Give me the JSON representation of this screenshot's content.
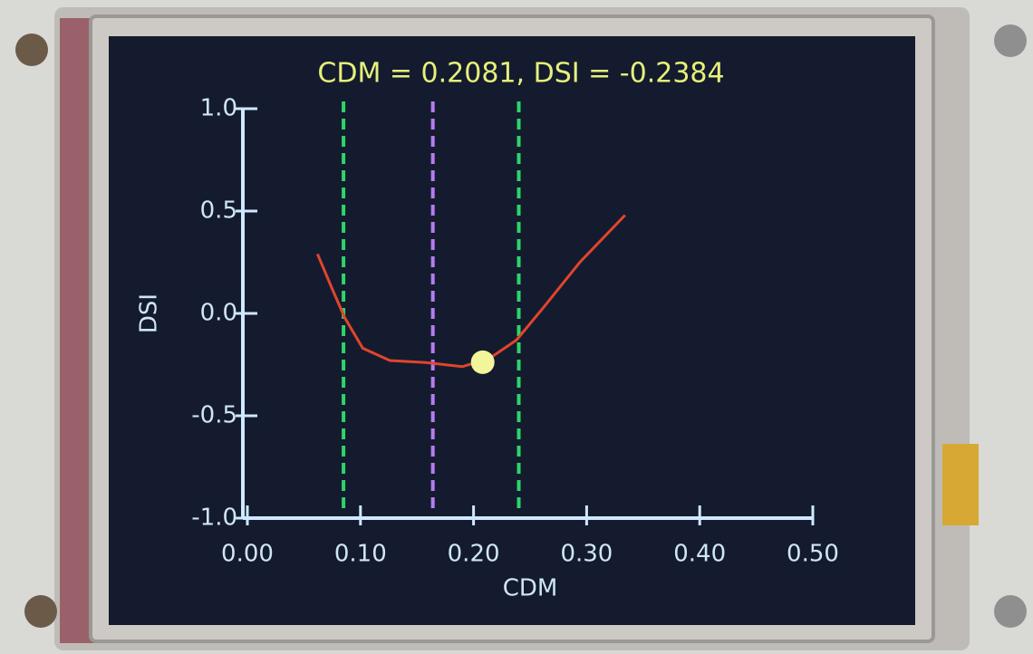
{
  "chart_data": {
    "type": "line",
    "title": "CDM = 0.2081, DSI = -0.2384",
    "x_label": "CDM",
    "y_label": "DSI",
    "xlim": [
      0,
      0.5
    ],
    "ylim": [
      -1,
      1
    ],
    "xticks": [
      {
        "value": 0,
        "label": "0.00"
      },
      {
        "value": 0.1,
        "label": "0.10"
      },
      {
        "value": 0.2,
        "label": "0.20"
      },
      {
        "value": 0.3,
        "label": "0.30"
      },
      {
        "value": 0.4,
        "label": "0.40"
      },
      {
        "value": 0.5,
        "label": "0.50"
      }
    ],
    "yticks": [
      {
        "value": 1,
        "label": "1.0"
      },
      {
        "value": 0.5,
        "label": "0.5"
      },
      {
        "value": 0,
        "label": "0.0"
      },
      {
        "value": -0.5,
        "label": "-0.5"
      },
      {
        "value": -1,
        "label": "-1.0"
      }
    ],
    "series": [
      {
        "color": "#e0452c",
        "x": [
          0.062,
          0.075,
          0.086,
          0.102,
          0.126,
          0.158,
          0.19,
          0.214,
          0.238,
          0.262,
          0.294,
          0.334
        ],
        "values": [
          0.29,
          0.12,
          -0.02,
          -0.17,
          -0.23,
          -0.24,
          -0.26,
          -0.22,
          -0.13,
          0.03,
          0.25,
          0.48
        ]
      }
    ],
    "reference_lines": [
      {
        "x": 0.085,
        "color": "#2fd36a"
      },
      {
        "x": 0.164,
        "color": "#b57cf0"
      },
      {
        "x": 0.24,
        "color": "#2fd36a"
      }
    ],
    "marker": {
      "x": 0.2081,
      "y": -0.2384,
      "color": "#f2f59a"
    }
  }
}
